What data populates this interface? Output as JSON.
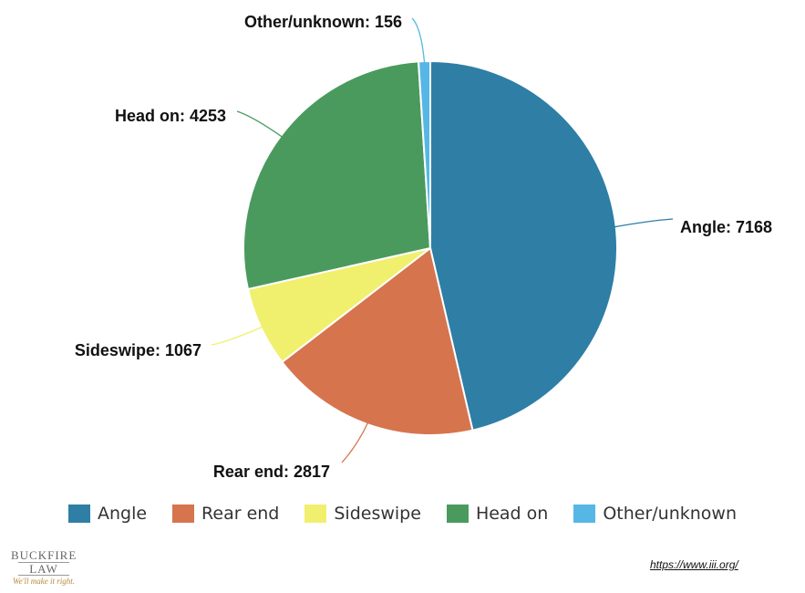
{
  "chart_data": {
    "type": "pie",
    "title": "",
    "slices": [
      {
        "name": "Angle",
        "value": 7168,
        "color": "#2e7ea6",
        "label": "Angle: 7168"
      },
      {
        "name": "Rear end",
        "value": 2817,
        "color": "#d6744e",
        "label": "Rear end: 2817"
      },
      {
        "name": "Sideswipe",
        "value": 1067,
        "color": "#f0f06e",
        "label": "Sideswipe: 1067"
      },
      {
        "name": "Head on",
        "value": 4253,
        "color": "#4a9a5e",
        "label": "Head on: 4253"
      },
      {
        "name": "Other/unknown",
        "value": 156,
        "color": "#56b7e6",
        "label": "Other/unknown: 156"
      }
    ],
    "legend_position": "bottom"
  },
  "branding": {
    "logo_line1": "BUCKFIRE",
    "logo_line2": "LAW",
    "tagline": "We'll make it right."
  },
  "source": {
    "text": "https://www.iii.org/"
  }
}
